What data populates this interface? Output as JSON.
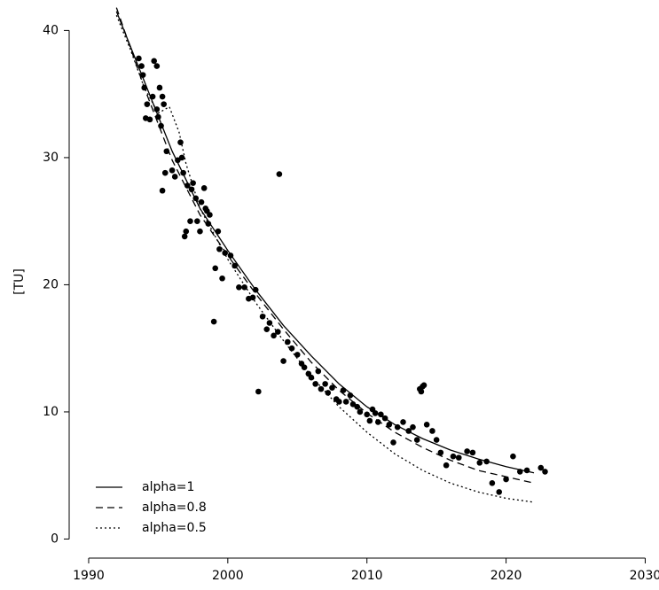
{
  "chart_data": {
    "type": "scatter",
    "y_label": "[TU]",
    "xlim": [
      1988.6,
      2030.8
    ],
    "ylim": [
      -1.5,
      41.7
    ],
    "xticks": [
      1990,
      2000,
      2010,
      2020,
      2030
    ],
    "yticks": [
      0,
      10,
      20,
      30,
      40
    ],
    "legend_position": "bottom-left",
    "points": {
      "color": "#000000",
      "x": [
        1993.6,
        1993.8,
        1993.9,
        1994.0,
        1994.2,
        1994.1,
        1994.4,
        1994.6,
        1994.7,
        1994.9,
        1994.9,
        1995.0,
        1995.1,
        1995.3,
        1995.4,
        1995.2,
        1995.3,
        1995.5,
        1995.6,
        1996.0,
        1996.2,
        1996.4,
        1996.6,
        1996.7,
        1996.8,
        1996.9,
        1997.0,
        1997.1,
        1997.3,
        1997.4,
        1997.5,
        1997.7,
        1997.8,
        1998.0,
        1998.1,
        1998.3,
        1998.4,
        1998.5,
        1998.6,
        1998.7,
        1999.0,
        1999.1,
        1999.3,
        1999.4,
        1999.6,
        1999.8,
        2000.2,
        2000.5,
        2000.8,
        2001.2,
        2001.5,
        2001.8,
        2002.0,
        2002.2,
        2002.5,
        2002.8,
        2003.0,
        2003.3,
        2003.6,
        2003.7,
        2004.0,
        2004.3,
        2004.6,
        2005.0,
        2005.3,
        2005.5,
        2005.8,
        2006.0,
        2006.3,
        2006.5,
        2006.7,
        2007.0,
        2007.2,
        2007.5,
        2007.8,
        2008.0,
        2008.3,
        2008.5,
        2008.8,
        2009.0,
        2009.3,
        2009.5,
        2010.0,
        2010.2,
        2010.4,
        2010.6,
        2010.8,
        2011.0,
        2011.3,
        2011.6,
        2011.9,
        2012.2,
        2012.6,
        2013.0,
        2013.3,
        2013.6,
        2013.8,
        2013.9,
        2014.0,
        2014.1,
        2014.3,
        2014.7,
        2015.0,
        2015.3,
        2015.7,
        2016.2,
        2016.6,
        2017.2,
        2017.6,
        2018.1,
        2018.6,
        2019.0,
        2019.5,
        2020.0,
        2020.5,
        2021.0,
        2021.5,
        2022.5,
        2022.8
      ],
      "values": [
        37.8,
        37.2,
        36.5,
        35.5,
        34.2,
        33.1,
        33.0,
        34.8,
        37.6,
        37.2,
        33.8,
        33.2,
        35.5,
        34.8,
        34.2,
        32.5,
        27.4,
        28.8,
        30.5,
        29.0,
        28.5,
        29.8,
        31.2,
        30.0,
        28.8,
        23.8,
        24.2,
        27.8,
        25.0,
        27.5,
        28.0,
        26.8,
        25.0,
        24.2,
        26.5,
        27.6,
        26.0,
        25.8,
        24.8,
        25.5,
        17.1,
        21.3,
        24.2,
        22.8,
        20.5,
        22.5,
        22.3,
        21.5,
        19.8,
        19.8,
        18.9,
        19.0,
        19.6,
        11.6,
        17.5,
        16.5,
        17.0,
        16.0,
        16.3,
        28.7,
        14.0,
        15.5,
        15.0,
        14.5,
        13.8,
        13.5,
        13.0,
        12.7,
        12.2,
        13.2,
        11.8,
        12.2,
        11.5,
        11.9,
        11.0,
        10.8,
        11.7,
        10.8,
        11.3,
        10.6,
        10.4,
        10.0,
        9.8,
        9.3,
        10.2,
        9.9,
        9.2,
        9.8,
        9.5,
        9.0,
        7.6,
        8.8,
        9.2,
        8.5,
        8.8,
        7.8,
        11.8,
        11.6,
        12.0,
        12.1,
        9.0,
        8.5,
        7.8,
        6.8,
        5.8,
        6.5,
        6.4,
        6.9,
        6.8,
        6.0,
        6.1,
        4.4,
        3.7,
        4.7,
        6.5,
        5.3,
        5.4,
        5.6,
        5.3
      ]
    },
    "series": [
      {
        "name": "alpha=1",
        "color": "#000000",
        "style": "solid",
        "x": [
          1992,
          1994,
          1996,
          1998,
          2000,
          2002,
          2004,
          2006,
          2008,
          2010,
          2012,
          2014,
          2016,
          2018,
          2020,
          2022
        ],
        "values": [
          41.5,
          36,
          30.5,
          26,
          22.7,
          19.6,
          16.8,
          14.4,
          12.2,
          10.4,
          9.0,
          7.9,
          7.0,
          6.3,
          5.7,
          5.2
        ]
      },
      {
        "name": "alpha=0.8",
        "color": "#000000",
        "style": "dashed",
        "x": [
          1992,
          1994,
          1996,
          1998,
          2000,
          2002,
          2004,
          2006,
          2008,
          2010,
          2012,
          2014,
          2016,
          2018,
          2020,
          2022
        ],
        "values": [
          41.8,
          35.5,
          29.8,
          25.5,
          22.3,
          19.3,
          16.5,
          13.9,
          11.7,
          9.9,
          8.4,
          7.2,
          6.2,
          5.4,
          4.9,
          4.4
        ]
      },
      {
        "name": "alpha=0.5",
        "color": "#000000",
        "style": "dotted",
        "x": [
          1992,
          1993,
          1994,
          1995,
          1995.8,
          1996.5,
          1997,
          1998,
          2000,
          2002,
          2004,
          2006,
          2008,
          2010,
          2012,
          2014,
          2016,
          2018,
          2020,
          2022
        ],
        "values": [
          41.2,
          38.5,
          35.5,
          33.5,
          34,
          32,
          29.5,
          26,
          22,
          18.6,
          15.6,
          12.8,
          10.4,
          8.4,
          6.7,
          5.4,
          4.4,
          3.7,
          3.2,
          2.9
        ]
      }
    ]
  }
}
